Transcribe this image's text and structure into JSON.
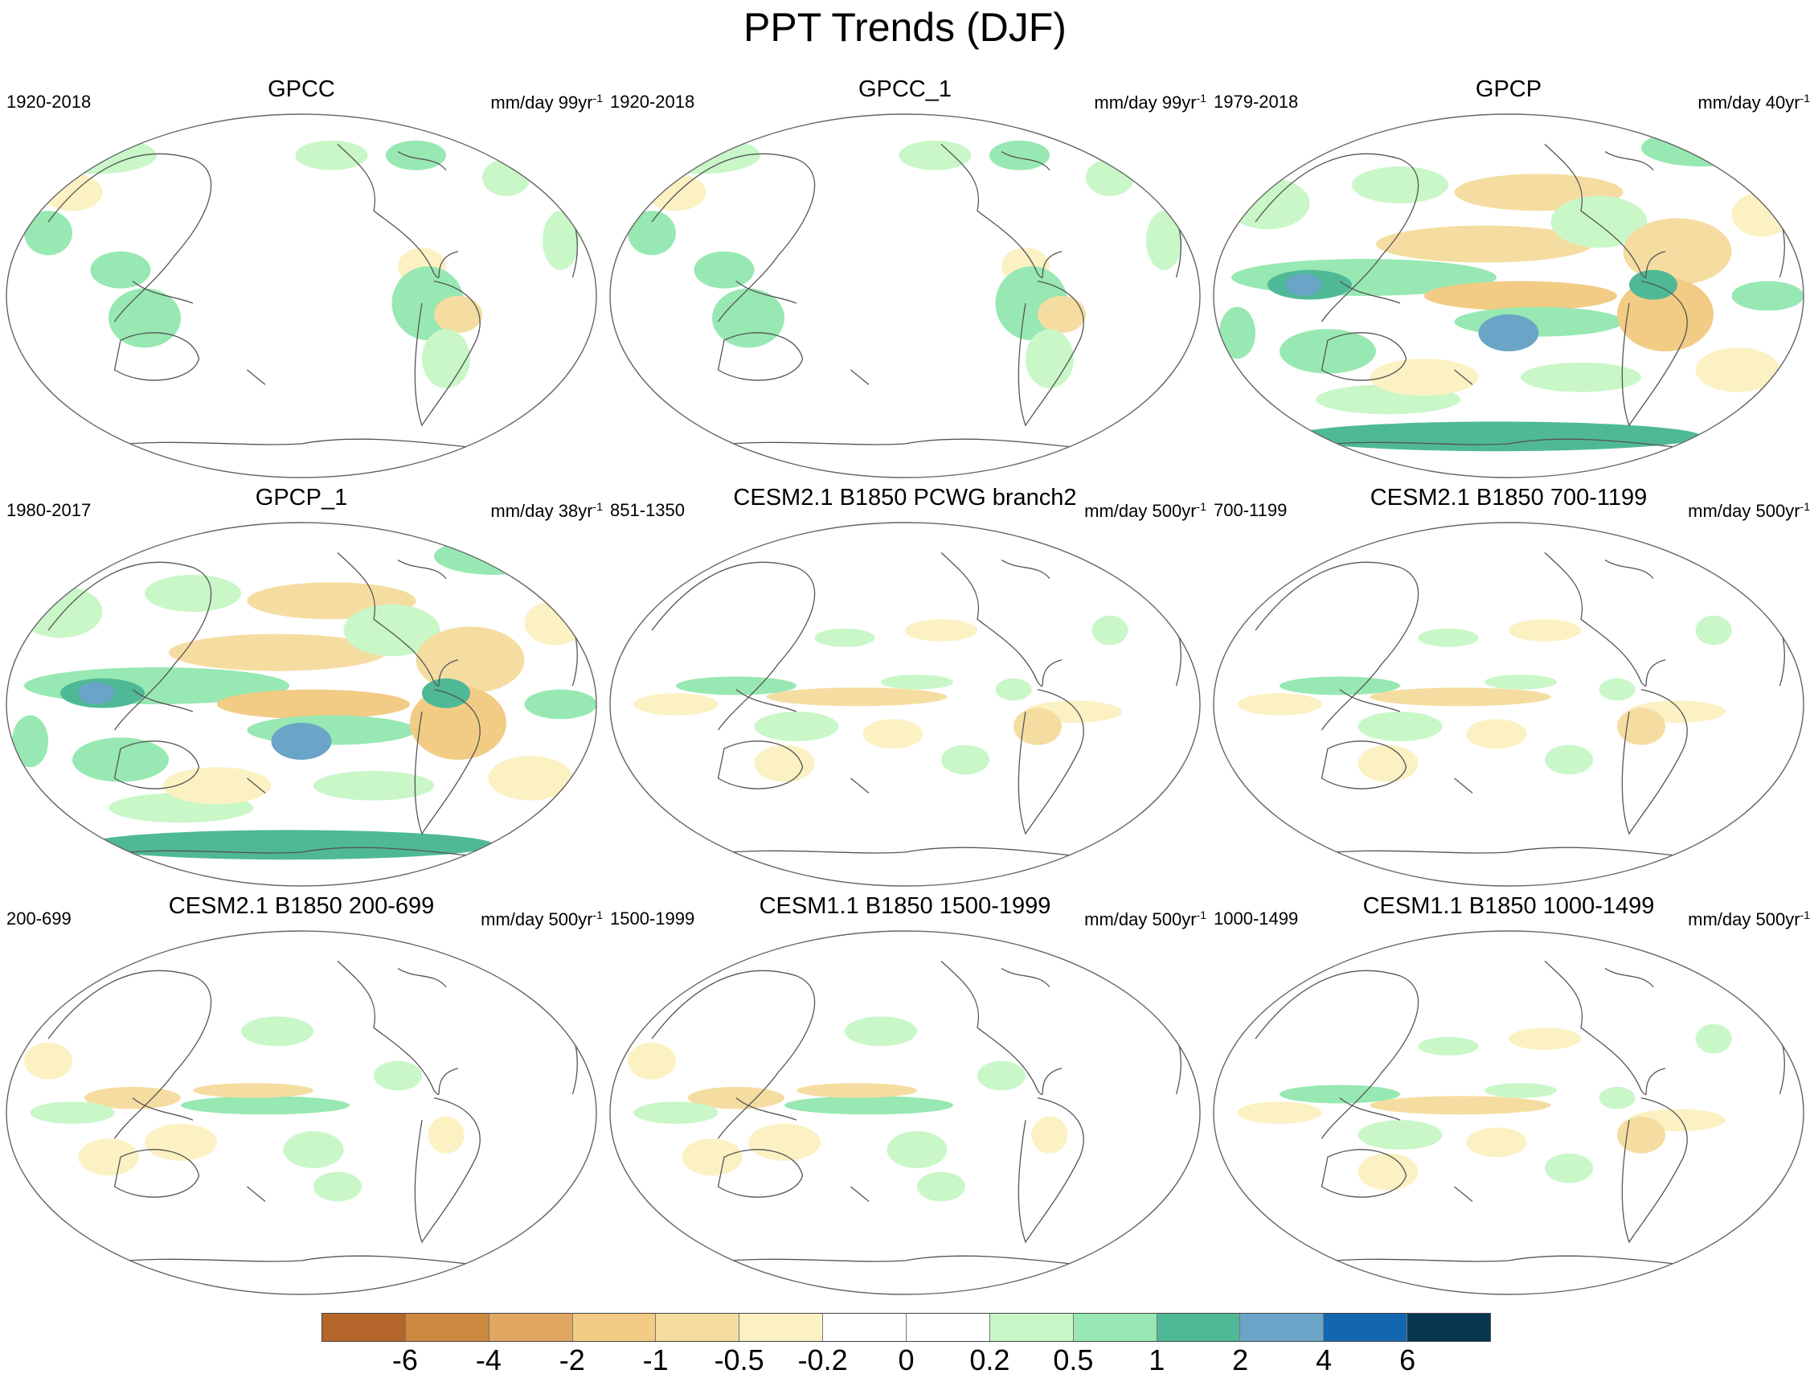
{
  "figure": {
    "title": "PPT Trends (DJF)"
  },
  "panels": [
    {
      "title": "GPCC",
      "period": "1920-2018",
      "units": "mm/day 99yr",
      "units_exp": "-1",
      "pattern": "obs_land"
    },
    {
      "title": "GPCC_1",
      "period": "1920-2018",
      "units": "mm/day 99yr",
      "units_exp": "-1",
      "pattern": "obs_land"
    },
    {
      "title": "GPCP",
      "period": "1979-2018",
      "units": "mm/day 40yr",
      "units_exp": "-1",
      "pattern": "obs_global"
    },
    {
      "title": "GPCP_1",
      "period": "1980-2017",
      "units": "mm/day 38yr",
      "units_exp": "-1",
      "pattern": "obs_global"
    },
    {
      "title": "CESM2.1 B1850 PCWG branch2",
      "period": "851-1350",
      "units": "mm/day 500yr",
      "units_exp": "-1",
      "pattern": "model"
    },
    {
      "title": "CESM2.1 B1850 700-1199",
      "period": "700-1199",
      "units": "mm/day 500yr",
      "units_exp": "-1",
      "pattern": "model"
    },
    {
      "title": "CESM2.1 B1850 200-699",
      "period": "200-699",
      "units": "mm/day 500yr",
      "units_exp": "-1",
      "pattern": "model_inv"
    },
    {
      "title": "CESM1.1 B1850 1500-1999",
      "period": "1500-1999",
      "units": "mm/day 500yr",
      "units_exp": "-1",
      "pattern": "model_inv"
    },
    {
      "title": "CESM1.1 B1850 1000-1499",
      "period": "1000-1499",
      "units": "mm/day 500yr",
      "units_exp": "-1",
      "pattern": "model"
    }
  ],
  "colorbar": {
    "colors": [
      "#b5652a",
      "#cf883f",
      "#e0a763",
      "#f2cb85",
      "#f5dda1",
      "#fbf1c3",
      "#ffffff",
      "#ffffff",
      "#c9f7c8",
      "#97e8b2",
      "#4fb997",
      "#6aa5c7",
      "#1367b1",
      "#073651"
    ],
    "labels": [
      "-6",
      "-4",
      "-2",
      "-1",
      "-0.5",
      "-0.2",
      "0",
      "0.2",
      "0.5",
      "1",
      "2",
      "4",
      "6"
    ]
  }
}
